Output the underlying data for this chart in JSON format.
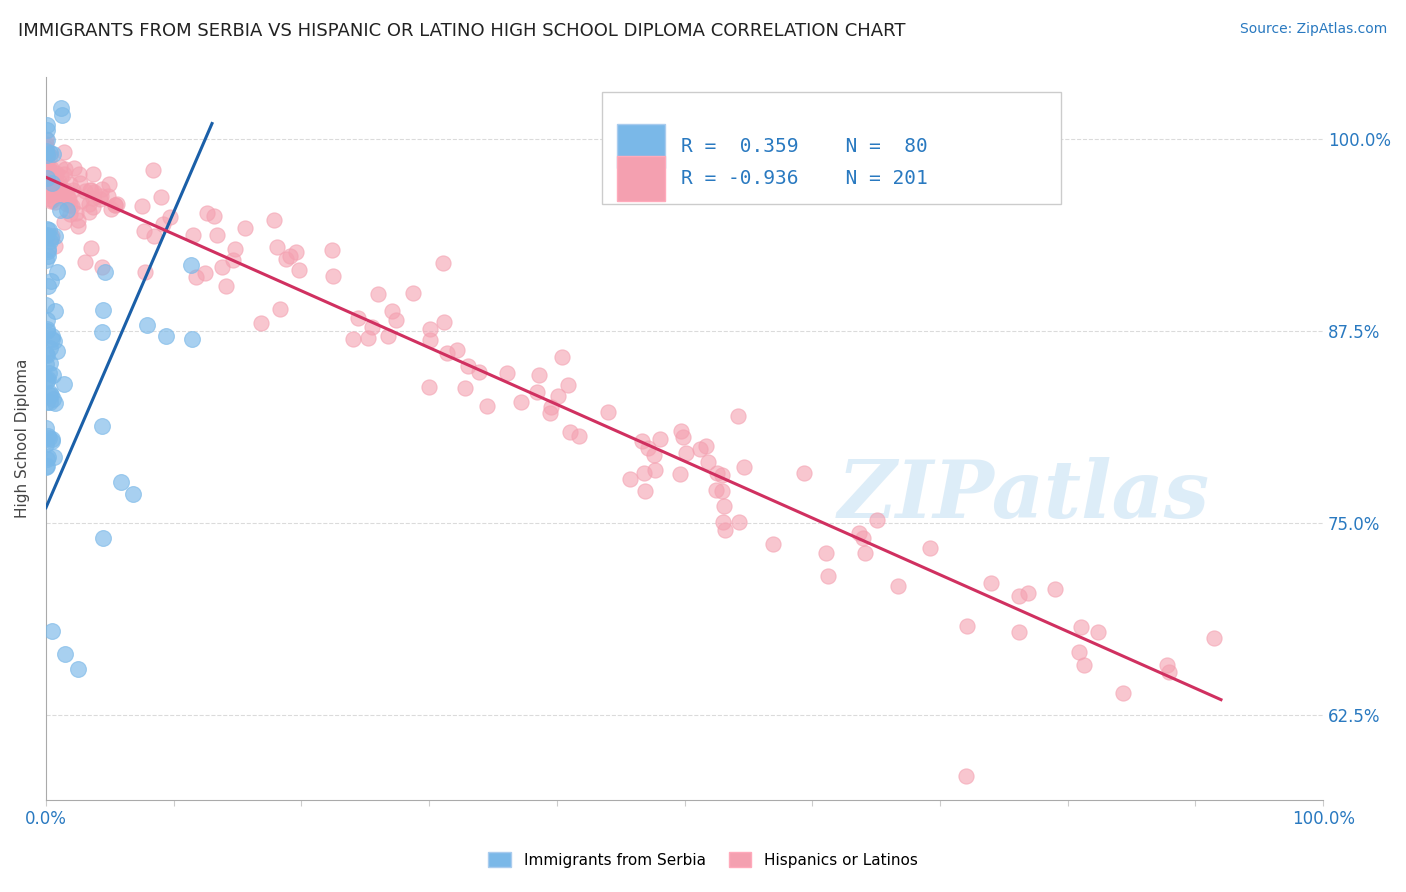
{
  "title": "IMMIGRANTS FROM SERBIA VS HISPANIC OR LATINO HIGH SCHOOL DIPLOMA CORRELATION CHART",
  "source": "Source: ZipAtlas.com",
  "ylabel": "High School Diploma",
  "xlim": [
    0.0,
    1.0
  ],
  "ylim": [
    0.57,
    1.04
  ],
  "yticks": [
    0.625,
    0.75,
    0.875,
    1.0
  ],
  "ytick_labels": [
    "62.5%",
    "75.0%",
    "87.5%",
    "100.0%"
  ],
  "series1_label": "Immigrants from Serbia",
  "series1_color": "#7ab8e8",
  "series1_edge": "#5a9fd4",
  "series1_R": 0.359,
  "series1_N": 80,
  "series2_label": "Hispanics or Latinos",
  "series2_color": "#f4a0b0",
  "series2_edge": "#e06080",
  "series2_R": -0.936,
  "series2_N": 201,
  "trendline1_color": "#1a5fa8",
  "trendline2_color": "#d03060",
  "watermark": "ZIPatlas",
  "background_color": "#ffffff",
  "grid_color": "#cccccc",
  "title_fontsize": 13,
  "axis_label_fontsize": 11,
  "source_fontsize": 10,
  "seed": 12345
}
